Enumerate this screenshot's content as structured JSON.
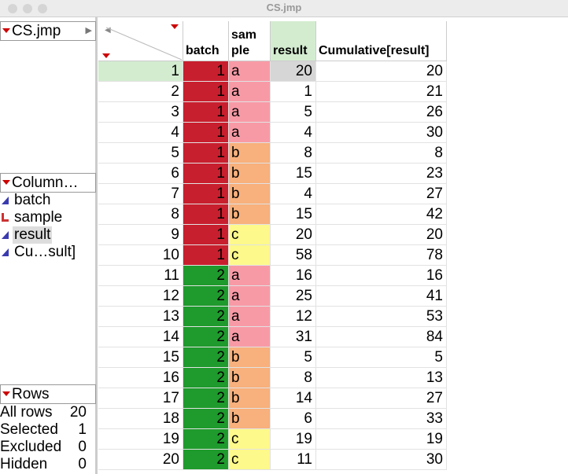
{
  "window": {
    "title": "CS.jmp"
  },
  "left_panel": {
    "table_name": "CS.jmp",
    "columns_header": "Column…",
    "columns": [
      "batch",
      "sample",
      "result",
      "Cu…sult]"
    ],
    "rows_header": "Rows",
    "row_states": [
      {
        "label": "All rows",
        "value": 20
      },
      {
        "label": "Selected",
        "value": 1
      },
      {
        "label": "Excluded",
        "value": 0
      },
      {
        "label": "Hidden",
        "value": 0
      }
    ]
  },
  "table": {
    "headers": [
      "batch",
      "sample",
      "result",
      "Cumulative[result]"
    ],
    "batch_colors": {
      "1": "#c81f2e",
      "2": "#1f9a2d"
    },
    "sample_colors": {
      "a": "#f89aa6",
      "b": "#f8b07c",
      "c": "#fdf98b"
    },
    "rows": [
      [
        1,
        1,
        "a",
        20,
        20
      ],
      [
        2,
        1,
        "a",
        1,
        21
      ],
      [
        3,
        1,
        "a",
        5,
        26
      ],
      [
        4,
        1,
        "a",
        4,
        30
      ],
      [
        5,
        1,
        "b",
        8,
        8
      ],
      [
        6,
        1,
        "b",
        15,
        23
      ],
      [
        7,
        1,
        "b",
        4,
        27
      ],
      [
        8,
        1,
        "b",
        15,
        42
      ],
      [
        9,
        1,
        "c",
        20,
        20
      ],
      [
        10,
        1,
        "c",
        58,
        78
      ],
      [
        11,
        2,
        "a",
        16,
        16
      ],
      [
        12,
        2,
        "a",
        25,
        41
      ],
      [
        13,
        2,
        "a",
        12,
        53
      ],
      [
        14,
        2,
        "a",
        31,
        84
      ],
      [
        15,
        2,
        "b",
        5,
        5
      ],
      [
        16,
        2,
        "b",
        8,
        13
      ],
      [
        17,
        2,
        "b",
        14,
        27
      ],
      [
        18,
        2,
        "b",
        6,
        33
      ],
      [
        19,
        2,
        "c",
        19,
        19
      ],
      [
        20,
        2,
        "c",
        11,
        30
      ]
    ]
  }
}
